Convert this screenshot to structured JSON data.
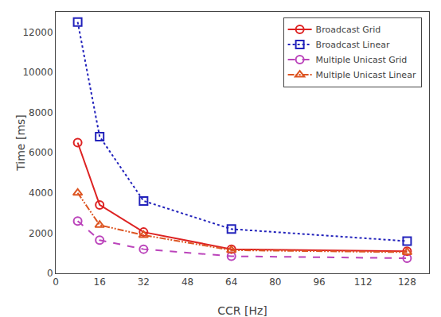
{
  "chart_data": {
    "type": "line",
    "xlabel": "CCR [Hz]",
    "ylabel": "Time [ms]",
    "x": [
      8,
      16,
      32,
      64,
      128
    ],
    "series": [
      {
        "name": "Broadcast Grid",
        "color": "#dd2222",
        "marker": "circle",
        "line_style": "solid",
        "values": [
          6500,
          3400,
          2050,
          1200,
          1100
        ]
      },
      {
        "name": "Broadcast Linear",
        "color": "#2222bb",
        "marker": "square",
        "line_style": "dotted",
        "values": [
          12500,
          6800,
          3600,
          2200,
          1600
        ]
      },
      {
        "name": "Multiple Unicast Grid",
        "color": "#bb44bb",
        "marker": "circle",
        "line_style": "dashed",
        "values": [
          2600,
          1650,
          1200,
          850,
          750
        ]
      },
      {
        "name": "Multiple Unicast Linear",
        "color": "#dd5522",
        "marker": "triangle-up",
        "line_style": "dashdotdot",
        "values": [
          4000,
          2400,
          1900,
          1150,
          1050
        ]
      }
    ],
    "xlim": [
      0,
      136
    ],
    "ylim": [
      0,
      13000
    ],
    "xticks": [
      0,
      16,
      32,
      48,
      64,
      80,
      96,
      112,
      128
    ],
    "yticks": [
      0,
      2000,
      4000,
      6000,
      8000,
      10000,
      12000
    ],
    "grid": false,
    "legend": "upper right"
  }
}
